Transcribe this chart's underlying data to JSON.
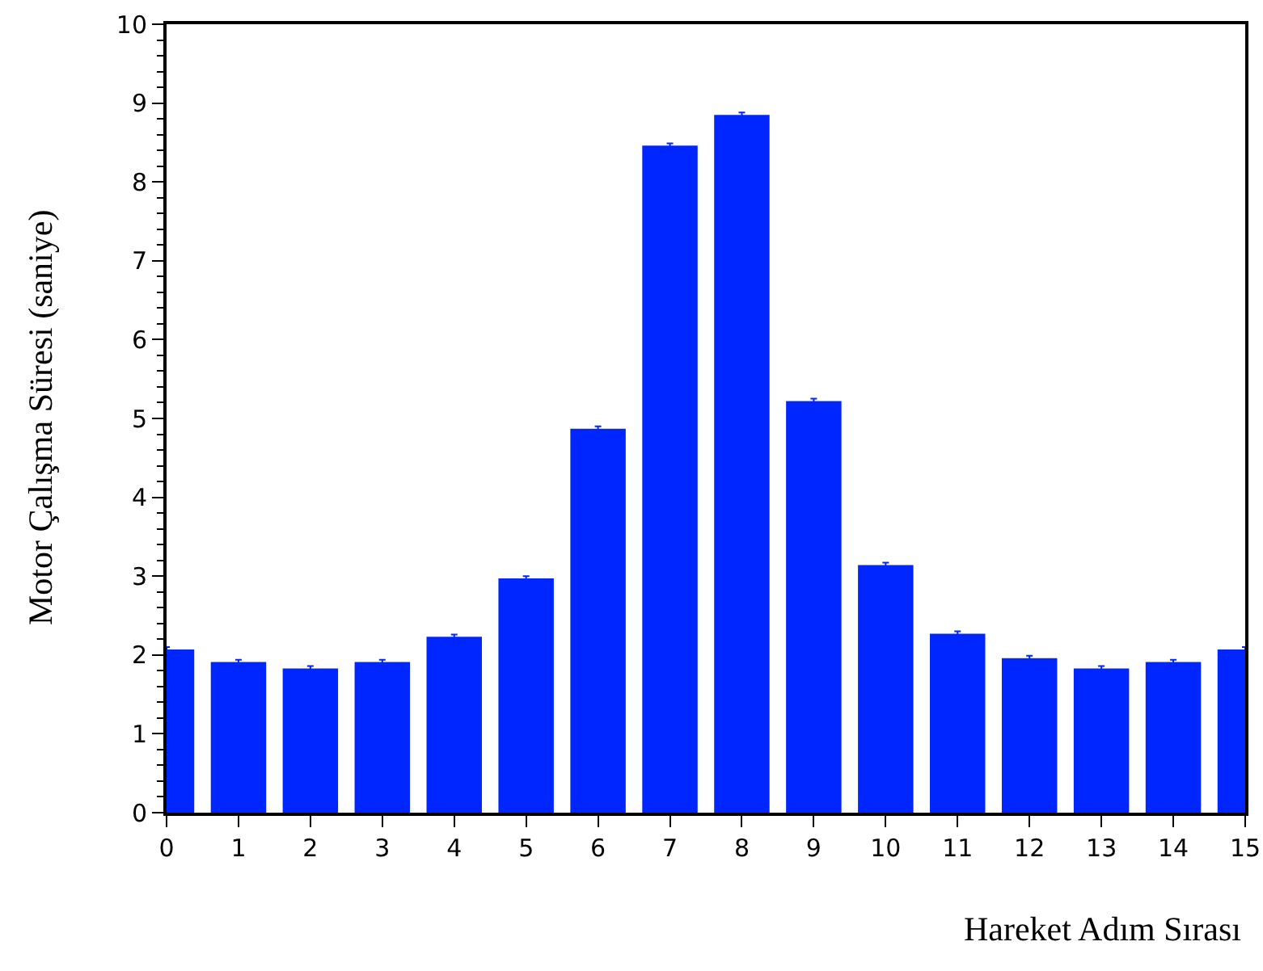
{
  "chart_data": {
    "type": "bar",
    "xlabel": "Hareket Adım Sırası",
    "ylabel": "Motor Çalışma Süresi (saniye)",
    "x": [
      0,
      1,
      2,
      3,
      4,
      5,
      6,
      7,
      8,
      9,
      10,
      11,
      12,
      13,
      14,
      15
    ],
    "series": [
      {
        "color": "#0026ff",
        "values": [
          2.07,
          1.91,
          1.83,
          1.91,
          2.23,
          2.97,
          4.87,
          8.46,
          8.85,
          5.22,
          3.14,
          2.27,
          1.96,
          1.83,
          1.91,
          2.07
        ],
        "errors": [
          0.03,
          0.03,
          0.03,
          0.03,
          0.03,
          0.03,
          0.03,
          0.03,
          0.03,
          0.03,
          0.03,
          0.03,
          0.03,
          0.03,
          0.03,
          0.03
        ]
      }
    ],
    "xlim": [
      0,
      15
    ],
    "xticks": [
      0,
      1,
      2,
      3,
      4,
      5,
      6,
      7,
      8,
      9,
      10,
      11,
      12,
      13,
      14,
      15
    ],
    "ylim": [
      0,
      10
    ],
    "yticks": [
      0,
      1,
      2,
      3,
      4,
      5,
      6,
      7,
      8,
      9,
      10
    ],
    "grid": false
  }
}
